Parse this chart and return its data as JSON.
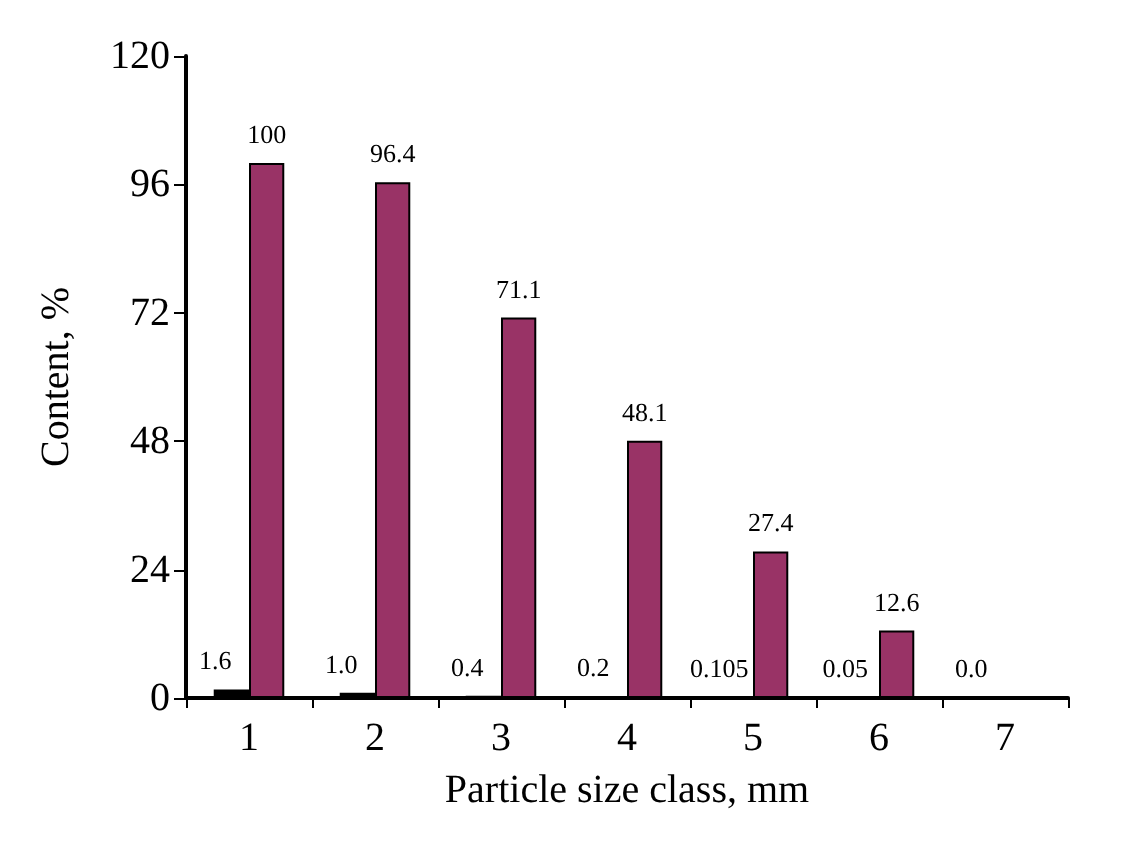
{
  "chart_data": {
    "type": "bar",
    "xlabel": "Particle size class, mm",
    "ylabel": "Content, %",
    "categories": [
      "1",
      "2",
      "3",
      "4",
      "5",
      "6",
      "7"
    ],
    "series": [
      {
        "color": "#000000",
        "values": [
          1.6,
          1.0,
          0.4,
          0.2,
          0.105,
          0.05,
          0.0
        ],
        "value_labels": [
          "1.6",
          "1.0",
          "0.4",
          "0.2",
          "0.105",
          "0.05",
          "0.0"
        ]
      },
      {
        "color": "#993366",
        "values": [
          100,
          96.4,
          71.1,
          48.1,
          27.4,
          12.6,
          null
        ],
        "value_labels": [
          "100",
          "96.4",
          "71.1",
          "48.1",
          "27.4",
          "12.6",
          null
        ]
      }
    ],
    "ylim": [
      0,
      120
    ],
    "yticks": [
      0,
      24,
      48,
      72,
      96,
      120
    ],
    "grid": false
  }
}
